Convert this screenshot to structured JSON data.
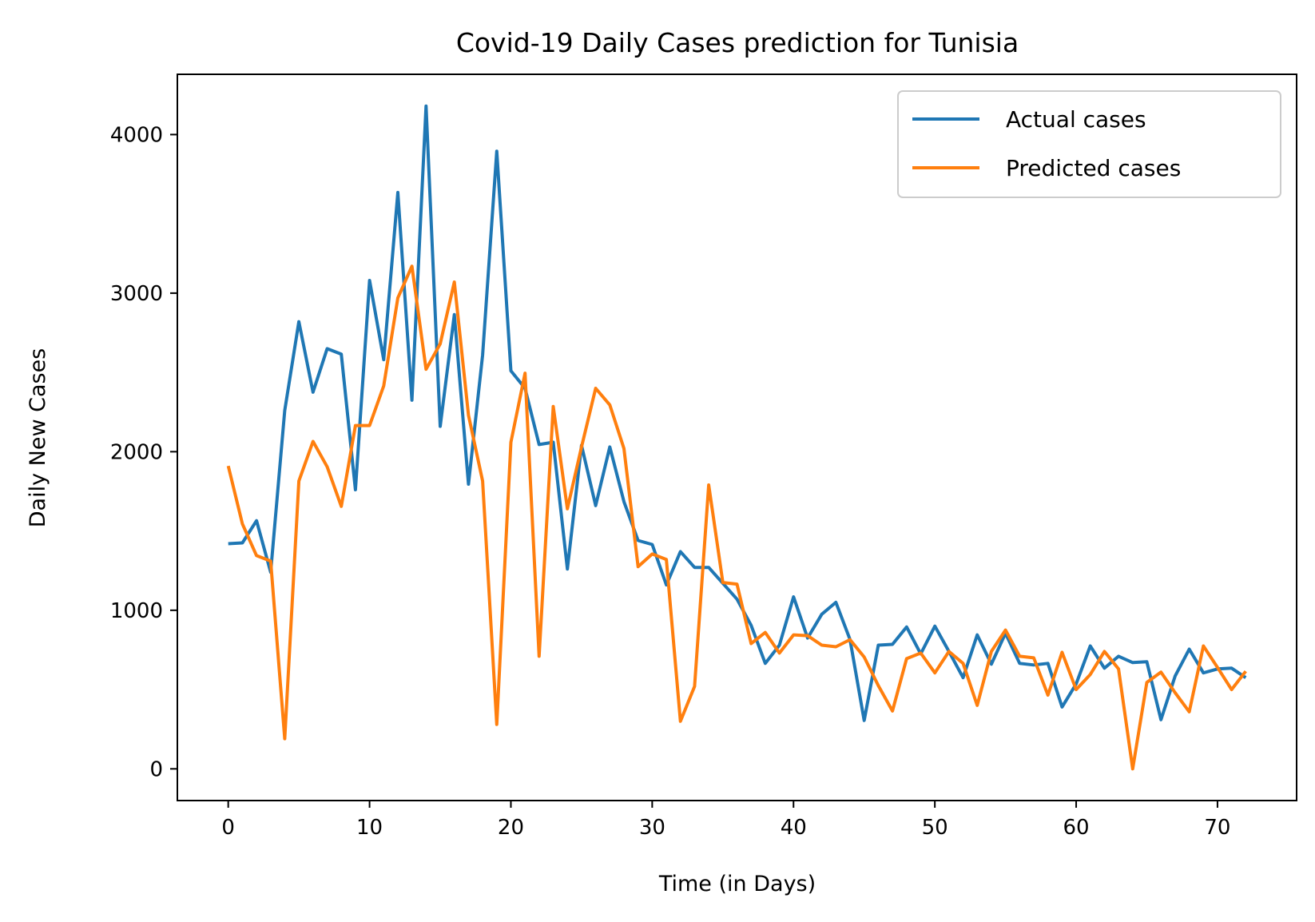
{
  "chart_data": {
    "type": "line",
    "title": "Covid-19 Daily Cases prediction for Tunisia",
    "xlabel": "Time (in Days)",
    "ylabel": "Daily New Cases",
    "xlim": [
      -3.6,
      75.6
    ],
    "ylim": [
      -200,
      4380
    ],
    "xticks": [
      0,
      10,
      20,
      30,
      40,
      50,
      60,
      70
    ],
    "yticks": [
      0,
      1000,
      2000,
      3000,
      4000
    ],
    "grid": false,
    "legend_position": "top-right",
    "x": [
      0,
      1,
      2,
      3,
      4,
      5,
      6,
      7,
      8,
      9,
      10,
      11,
      12,
      13,
      14,
      15,
      16,
      17,
      18,
      19,
      20,
      21,
      22,
      23,
      24,
      25,
      26,
      27,
      28,
      29,
      30,
      31,
      32,
      33,
      34,
      35,
      36,
      37,
      38,
      39,
      40,
      41,
      42,
      43,
      44,
      45,
      46,
      47,
      48,
      49,
      50,
      51,
      52,
      53,
      54,
      55,
      56,
      57,
      58,
      59,
      60,
      61,
      62,
      63,
      64,
      65,
      66,
      67,
      68,
      69,
      70,
      71,
      72
    ],
    "series": [
      {
        "name": "Actual cases",
        "color": "#1f77b4",
        "values": [
          1420,
          1425,
          1565,
          1240,
          2260,
          2820,
          2375,
          2650,
          2615,
          1760,
          3080,
          2580,
          3635,
          2325,
          4180,
          2160,
          2865,
          1795,
          2610,
          3895,
          2510,
          2400,
          2045,
          2060,
          1260,
          2040,
          1660,
          2030,
          1685,
          1440,
          1415,
          1160,
          1370,
          1270,
          1270,
          1170,
          1070,
          905,
          665,
          780,
          1085,
          825,
          975,
          1050,
          815,
          305,
          780,
          785,
          895,
          725,
          900,
          740,
          575,
          845,
          660,
          855,
          665,
          655,
          665,
          390,
          535,
          775,
          635,
          710,
          670,
          675,
          310,
          585,
          755,
          605,
          630,
          635,
          575
        ]
      },
      {
        "name": "Predicted cases",
        "color": "#ff7f0e",
        "values": [
          1910,
          1545,
          1345,
          1310,
          190,
          1815,
          2065,
          1905,
          1655,
          2165,
          2165,
          2415,
          2970,
          3170,
          2520,
          2680,
          3070,
          2230,
          1815,
          280,
          2060,
          2495,
          710,
          2285,
          1640,
          2030,
          2400,
          2295,
          2020,
          1275,
          1355,
          1320,
          300,
          520,
          1790,
          1175,
          1165,
          790,
          860,
          730,
          845,
          840,
          780,
          770,
          815,
          705,
          525,
          365,
          695,
          730,
          605,
          740,
          665,
          400,
          740,
          875,
          710,
          700,
          465,
          735,
          500,
          595,
          740,
          630,
          0,
          545,
          610,
          480,
          360,
          775,
          640,
          500,
          615
        ]
      }
    ]
  }
}
